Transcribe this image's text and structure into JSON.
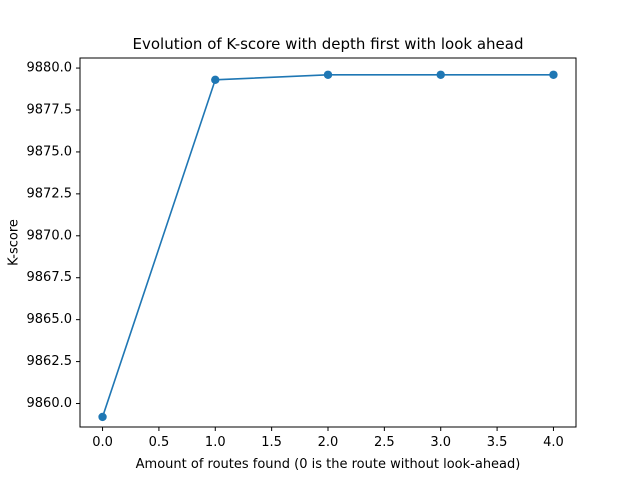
{
  "chart_data": {
    "type": "line",
    "title": "Evolution of K-score with depth first with look ahead",
    "xlabel": "Amount of routes found (0 is the route without look-ahead)",
    "ylabel": "K-score",
    "xlim": [
      -0.2,
      4.2
    ],
    "ylim": [
      9858.6,
      9880.6
    ],
    "x_ticks": [
      0.0,
      0.5,
      1.0,
      1.5,
      2.0,
      2.5,
      3.0,
      3.5,
      4.0
    ],
    "x_tick_labels": [
      "0.0",
      "0.5",
      "1.0",
      "1.5",
      "2.0",
      "2.5",
      "3.0",
      "3.5",
      "4.0"
    ],
    "y_ticks": [
      9860.0,
      9862.5,
      9865.0,
      9867.5,
      9870.0,
      9872.5,
      9875.0,
      9877.5,
      9880.0
    ],
    "y_tick_labels": [
      "9860.0",
      "9862.5",
      "9865.0",
      "9867.5",
      "9870.0",
      "9872.5",
      "9875.0",
      "9877.5",
      "9880.0"
    ],
    "grid": false,
    "legend": "none",
    "series": [
      {
        "x": [
          0,
          1,
          2,
          3,
          4
        ],
        "values": [
          9859.2,
          9879.3,
          9879.6,
          9879.6,
          9879.6
        ],
        "color": "#1f77b4",
        "marker": "circle"
      }
    ]
  }
}
